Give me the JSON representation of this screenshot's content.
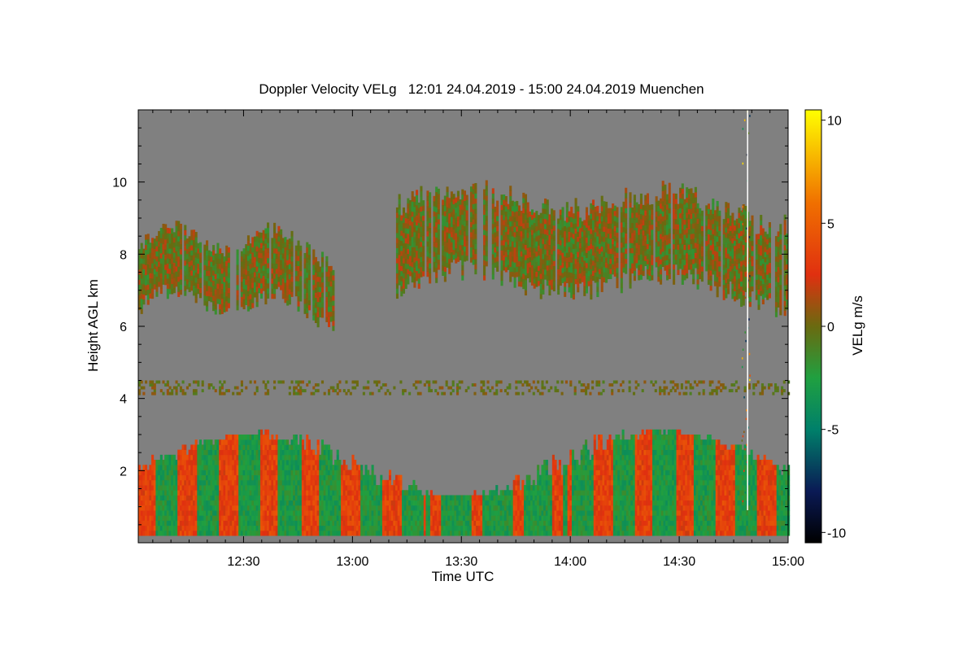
{
  "chart_data": {
    "type": "heatmap",
    "title": "Doppler Velocity VELg   12:01 24.04.2019 - 15:00 24.04.2019 Muenchen",
    "xlabel": "Time UTC",
    "ylabel": "Height AGL km",
    "colorbar_label": "VELg m/s",
    "x_range_minutes_utc": [
      721,
      900
    ],
    "xlim": [
      "12:01",
      "15:00"
    ],
    "ylim": [
      0,
      12
    ],
    "clim": [
      -10.5,
      10.5
    ],
    "x_ticks": [
      {
        "minutes": 750,
        "label": "12:30"
      },
      {
        "minutes": 780,
        "label": "13:00"
      },
      {
        "minutes": 810,
        "label": "13:30"
      },
      {
        "minutes": 840,
        "label": "14:00"
      },
      {
        "minutes": 870,
        "label": "14:30"
      },
      {
        "minutes": 900,
        "label": "15:00"
      }
    ],
    "y_ticks": [
      {
        "value": 2,
        "label": "2"
      },
      {
        "value": 4,
        "label": "4"
      },
      {
        "value": 6,
        "label": "6"
      },
      {
        "value": 8,
        "label": "8"
      },
      {
        "value": 10,
        "label": "10"
      }
    ],
    "colorbar_ticks": [
      {
        "value": 10,
        "label": "10"
      },
      {
        "value": 5,
        "label": "5"
      },
      {
        "value": 0,
        "label": "0"
      },
      {
        "value": -5,
        "label": "-5"
      },
      {
        "value": -10,
        "label": "-10"
      }
    ],
    "colorscale": [
      {
        "value": -10.5,
        "color": "#000000"
      },
      {
        "value": -8,
        "color": "#0a1a55"
      },
      {
        "value": -5,
        "color": "#00806a"
      },
      {
        "value": -2.5,
        "color": "#20a040"
      },
      {
        "value": 0,
        "color": "#6a6a10"
      },
      {
        "value": 2.5,
        "color": "#e03010"
      },
      {
        "value": 6,
        "color": "#f07000"
      },
      {
        "value": 10.5,
        "color": "#ffff00"
      }
    ],
    "background_color": "#808080",
    "regions": [
      {
        "name": "boundary-layer",
        "time_start": "12:01",
        "time_end": "15:00",
        "height_bottom_km": 0.2,
        "height_top_km_range": [
          1.2,
          3.5
        ],
        "velocity_range": [
          -4,
          4
        ]
      },
      {
        "name": "upper-cloud-west",
        "time_start": "12:01",
        "time_end": "12:55",
        "height_bottom_km": 6.0,
        "height_top_km": 8.7,
        "velocity_range": [
          -2,
          2
        ]
      },
      {
        "name": "upper-cloud-east",
        "time_start": "13:12",
        "time_end": "15:00",
        "height_bottom_km": 6.4,
        "height_top_km": 9.9,
        "velocity_range": [
          -2,
          2
        ]
      },
      {
        "name": "weak-layer",
        "time_start": "12:01",
        "time_end": "15:00",
        "height_km": [
          4.1,
          4.5
        ],
        "velocity_range": [
          -1,
          1
        ]
      },
      {
        "name": "noise-column",
        "time": "14:48",
        "height_range_km": [
          0,
          12
        ],
        "velocity_range": [
          -10,
          10
        ]
      }
    ]
  }
}
